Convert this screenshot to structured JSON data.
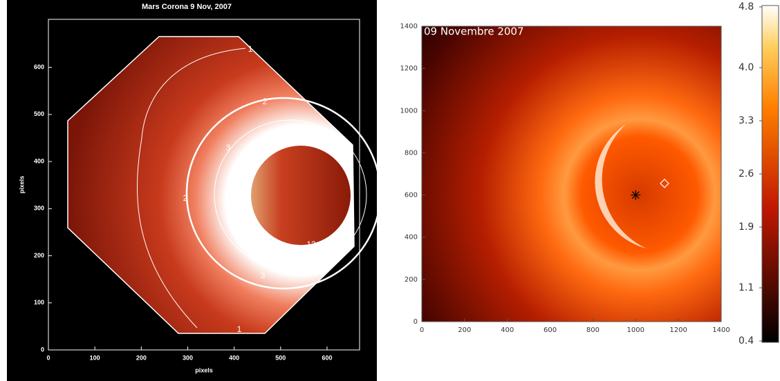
{
  "chart_data": [
    {
      "type": "image",
      "title": "Mars Corona  9 Nov, 2007",
      "xlabel": "pixels",
      "ylabel": "pixels",
      "xlim": [
        0,
        670
      ],
      "ylim": [
        0,
        702
      ],
      "xticks": [
        0,
        100,
        200,
        300,
        400,
        500,
        600
      ],
      "yticks": [
        0,
        100,
        200,
        300,
        400,
        500,
        600
      ],
      "contour_labels": [
        "1",
        "1",
        "2",
        "2",
        "3",
        "3",
        "12"
      ]
    },
    {
      "type": "image",
      "title": "09 Novembre 2007",
      "xlim": [
        0,
        1400
      ],
      "ylim": [
        0,
        1400
      ],
      "xticks": [
        0,
        200,
        400,
        600,
        800,
        1000,
        1200,
        1400
      ],
      "yticks": [
        0,
        200,
        400,
        600,
        800,
        1000,
        1200,
        1400
      ],
      "markers": [
        {
          "x": 1000,
          "y": 600
        },
        {
          "x": 1135,
          "y": 655
        }
      ],
      "clim": [
        0.4,
        4.8
      ],
      "cticks": [
        4.8,
        {
          "value": 4.0,
          "label": "4.0"
        },
        3.3,
        2.6,
        1.9,
        1.1,
        0.4
      ]
    }
  ]
}
